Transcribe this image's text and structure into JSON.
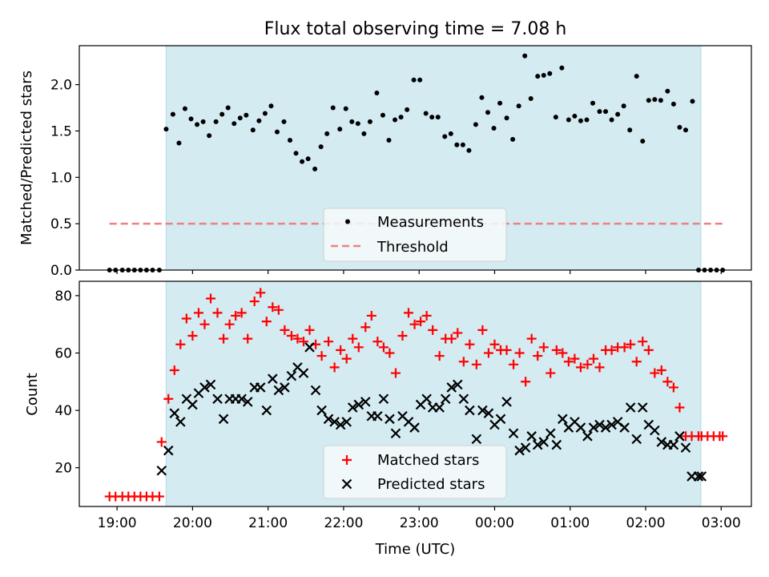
{
  "colors": {
    "shade": "#d3ebf1",
    "shade_edge": "#b7dde7",
    "measurement": "#000000",
    "threshold": "#f08080",
    "matched": "#ff0000",
    "predicted": "#000000",
    "legend_bg": "#f5fafc"
  },
  "chart_data": [
    {
      "type": "scatter",
      "title": "Flux total observing time = 7.08 h",
      "xlabel": "",
      "ylabel": "Matched/Predicted stars",
      "xlim": [
        -0.5,
        8.4
      ],
      "ylim": [
        0,
        2.42
      ],
      "yticks": [
        0,
        0.5,
        1.0,
        1.5,
        2.0
      ],
      "ytick_labels": [
        "0.0",
        "0.5",
        "1.0",
        "1.5",
        "2.0"
      ],
      "shaded_x_range": [
        0.65,
        7.73
      ],
      "legend_position": "lower center",
      "series": [
        {
          "name": "Measurements",
          "kind": "dots",
          "x": [
            -0.1,
            -0.02,
            0.07,
            0.15,
            0.23,
            0.31,
            0.39,
            0.47,
            0.56,
            0.65,
            0.74,
            0.82,
            0.9,
            0.98,
            1.06,
            1.14,
            1.22,
            1.31,
            1.39,
            1.47,
            1.55,
            1.63,
            1.71,
            1.8,
            1.88,
            1.96,
            2.04,
            2.12,
            2.21,
            2.29,
            2.37,
            2.45,
            2.53,
            2.62,
            2.7,
            2.78,
            2.86,
            2.95,
            3.03,
            3.11,
            3.19,
            3.27,
            3.35,
            3.44,
            3.52,
            3.6,
            3.68,
            3.76,
            3.84,
            3.93,
            4.01,
            4.09,
            4.17,
            4.25,
            4.34,
            4.42,
            4.5,
            4.58,
            4.66,
            4.75,
            4.83,
            4.91,
            4.99,
            5.07,
            5.16,
            5.24,
            5.32,
            5.4,
            5.48,
            5.57,
            5.65,
            5.73,
            5.81,
            5.89,
            5.98,
            6.06,
            6.14,
            6.22,
            6.3,
            6.39,
            6.47,
            6.55,
            6.63,
            6.71,
            6.79,
            6.88,
            6.96,
            7.04,
            7.12,
            7.2,
            7.29,
            7.37,
            7.45,
            7.53,
            7.62,
            7.7,
            7.78,
            7.86,
            7.94,
            8.02
          ],
          "y": [
            0,
            0,
            0,
            0,
            0,
            0,
            0,
            0,
            0,
            1.52,
            1.68,
            1.37,
            1.74,
            1.63,
            1.57,
            1.6,
            1.45,
            1.6,
            1.68,
            1.75,
            1.58,
            1.64,
            1.67,
            1.51,
            1.61,
            1.69,
            1.77,
            1.49,
            1.6,
            1.4,
            1.26,
            1.17,
            1.2,
            1.09,
            1.33,
            1.47,
            1.75,
            1.52,
            1.74,
            1.6,
            1.58,
            1.47,
            1.6,
            1.91,
            1.67,
            1.4,
            1.62,
            1.65,
            1.73,
            2.05,
            2.05,
            1.69,
            1.65,
            1.65,
            1.44,
            1.47,
            1.35,
            1.35,
            1.29,
            1.57,
            1.86,
            1.7,
            1.53,
            1.8,
            1.64,
            1.41,
            1.77,
            2.31,
            1.85,
            2.09,
            2.1,
            2.12,
            1.65,
            2.18,
            1.62,
            1.66,
            1.61,
            1.62,
            1.8,
            1.71,
            1.71,
            1.62,
            1.68,
            1.77,
            1.51,
            2.09,
            1.39,
            1.83,
            1.84,
            1.83,
            1.93,
            1.79,
            1.54,
            1.51,
            1.82,
            0,
            0,
            0,
            0,
            0
          ]
        },
        {
          "name": "Threshold",
          "kind": "dashed-line",
          "x": [
            -0.1,
            8.02
          ],
          "y": [
            0.5,
            0.5
          ]
        }
      ]
    },
    {
      "type": "scatter",
      "title": "",
      "xlabel": "Time (UTC)",
      "ylabel": "Count",
      "xlim": [
        -0.5,
        8.4
      ],
      "ylim": [
        6.5,
        85
      ],
      "yticks": [
        20,
        40,
        60,
        80
      ],
      "ytick_labels": [
        "20",
        "40",
        "60",
        "80"
      ],
      "xticks": [
        0,
        1,
        2,
        3,
        4,
        5,
        6,
        7,
        8
      ],
      "xtick_labels": [
        "19:00",
        "20:00",
        "21:00",
        "22:00",
        "23:00",
        "00:00",
        "01:00",
        "02:00",
        "03:00"
      ],
      "shaded_x_range": [
        0.65,
        7.73
      ],
      "legend_position": "lower center",
      "series": [
        {
          "name": "Matched stars",
          "kind": "plus",
          "x": [
            -0.1,
            -0.02,
            0.07,
            0.15,
            0.23,
            0.31,
            0.39,
            0.47,
            0.56,
            0.59,
            0.68,
            0.76,
            0.84,
            0.92,
            1.0,
            1.08,
            1.16,
            1.24,
            1.33,
            1.41,
            1.49,
            1.57,
            1.65,
            1.73,
            1.82,
            1.9,
            1.98,
            2.06,
            2.14,
            2.22,
            2.31,
            2.39,
            2.47,
            2.55,
            2.63,
            2.71,
            2.8,
            2.88,
            2.96,
            3.04,
            3.12,
            3.2,
            3.29,
            3.37,
            3.45,
            3.53,
            3.61,
            3.69,
            3.78,
            3.86,
            3.94,
            4.02,
            4.1,
            4.18,
            4.27,
            4.35,
            4.43,
            4.51,
            4.59,
            4.67,
            4.76,
            4.84,
            4.92,
            5.0,
            5.08,
            5.16,
            5.25,
            5.33,
            5.41,
            5.49,
            5.57,
            5.65,
            5.74,
            5.82,
            5.9,
            5.98,
            6.06,
            6.14,
            6.23,
            6.31,
            6.39,
            6.47,
            6.55,
            6.63,
            6.72,
            6.8,
            6.88,
            6.96,
            7.04,
            7.12,
            7.21,
            7.29,
            7.37,
            7.45,
            7.53,
            7.61,
            7.7,
            7.74,
            7.82,
            7.9,
            7.98,
            8.02
          ],
          "y": [
            10,
            10,
            10,
            10,
            10,
            10,
            10,
            10,
            10,
            29,
            44,
            54,
            63,
            72,
            66,
            74,
            70,
            79,
            74,
            65,
            70,
            73,
            74,
            65,
            78,
            81,
            71,
            76,
            75,
            68,
            66,
            65,
            64,
            68,
            63,
            59,
            64,
            55,
            61,
            58,
            65,
            62,
            69,
            73,
            64,
            62,
            60,
            53,
            66,
            74,
            70,
            71,
            73,
            68,
            59,
            65,
            65,
            67,
            57,
            63,
            56,
            68,
            60,
            63,
            61,
            61,
            56,
            60,
            50,
            65,
            59,
            62,
            53,
            61,
            60,
            57,
            58,
            55,
            56,
            58,
            55,
            61,
            61,
            62,
            62,
            63,
            57,
            64,
            61,
            53,
            54,
            50,
            48,
            41,
            31,
            31,
            31,
            31,
            31,
            31,
            31,
            31
          ]
        },
        {
          "name": "Predicted stars",
          "kind": "x",
          "x": [
            0.59,
            0.68,
            0.76,
            0.84,
            0.92,
            1.0,
            1.08,
            1.16,
            1.24,
            1.33,
            1.41,
            1.49,
            1.57,
            1.65,
            1.73,
            1.82,
            1.9,
            1.98,
            2.06,
            2.14,
            2.22,
            2.31,
            2.39,
            2.47,
            2.55,
            2.63,
            2.71,
            2.8,
            2.88,
            2.96,
            3.04,
            3.12,
            3.2,
            3.29,
            3.37,
            3.45,
            3.53,
            3.61,
            3.69,
            3.78,
            3.86,
            3.94,
            4.02,
            4.1,
            4.18,
            4.27,
            4.35,
            4.43,
            4.51,
            4.59,
            4.67,
            4.76,
            4.84,
            4.92,
            5.0,
            5.08,
            5.16,
            5.25,
            5.33,
            5.41,
            5.49,
            5.57,
            5.65,
            5.74,
            5.82,
            5.9,
            5.98,
            6.06,
            6.14,
            6.23,
            6.31,
            6.39,
            6.47,
            6.55,
            6.63,
            6.72,
            6.8,
            6.88,
            6.96,
            7.04,
            7.12,
            7.21,
            7.29,
            7.37,
            7.45,
            7.53,
            7.61,
            7.7,
            7.74
          ],
          "y": [
            19,
            26,
            39,
            36,
            44,
            42,
            46,
            48,
            49,
            44,
            37,
            44,
            44,
            44,
            43,
            48,
            48,
            40,
            51,
            47,
            48,
            52,
            55,
            53,
            62,
            47,
            40,
            37,
            36,
            35,
            36,
            41,
            42,
            43,
            38,
            38,
            44,
            37,
            32,
            38,
            36,
            34,
            42,
            44,
            41,
            41,
            44,
            48,
            49,
            44,
            40,
            30,
            40,
            39,
            35,
            37,
            43,
            32,
            26,
            27,
            31,
            28,
            29,
            32,
            28,
            37,
            34,
            36,
            34,
            31,
            34,
            35,
            34,
            35,
            36,
            34,
            41,
            30,
            41,
            35,
            33,
            29,
            28,
            28,
            31,
            27,
            17,
            17,
            17
          ]
        }
      ]
    }
  ]
}
